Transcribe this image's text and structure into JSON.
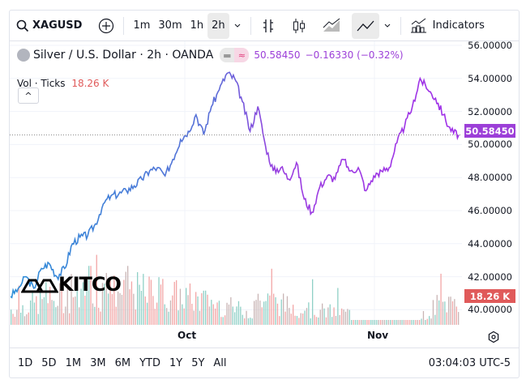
{
  "toolbar": {
    "symbol": "XAGUSD",
    "intervals": [
      "1m",
      "30m",
      "1h",
      "2h"
    ],
    "selected_interval": "2h",
    "indicators_label": "Indicators"
  },
  "legend": {
    "title": "Silver / U.S. Dollar · 2h · OANDA",
    "price": "50.58450",
    "change": "−0.16330 (−0.32%)",
    "price_color": "#9c3fd8"
  },
  "volume": {
    "label": "Vol · Ticks",
    "value": "18.26 K",
    "color": "#e05a5a"
  },
  "price_axis": [
    "56.00000",
    "54.00000",
    "52.00000",
    "50.00000",
    "48.00000",
    "46.00000",
    "44.00000",
    "42.00000",
    "40.00000"
  ],
  "last_price_label": "50.58450",
  "last_volume_label": "18.26 K",
  "time_axis": [
    "Oct",
    "Nov"
  ],
  "ranges": [
    "1D",
    "5D",
    "1M",
    "3M",
    "6M",
    "YTD",
    "1Y",
    "5Y",
    "All"
  ],
  "clock": "03:04:03 UTC-5",
  "logo_text": "KITCO",
  "chart_data": {
    "type": "line",
    "ylim": [
      40,
      56
    ],
    "series": [
      {
        "name": "XAGUSD",
        "values": [
          40.8,
          41.3,
          42.0,
          41.3,
          42.5,
          42.8,
          42.0,
          42.5,
          44.0,
          44.4,
          44.5,
          45.2,
          46.4,
          46.9,
          47.0,
          47.2,
          47.5,
          47.9,
          48.4,
          48.6,
          48.1,
          49.1,
          50.3,
          50.8,
          51.8,
          50.6,
          52.3,
          53.3,
          54.3,
          54.0,
          52.6,
          50.8,
          52.3,
          49.9,
          48.4,
          48.6,
          47.9,
          48.9,
          46.7,
          45.9,
          47.4,
          48.1,
          47.9,
          49.1,
          48.4,
          48.6,
          47.2,
          48.1,
          48.4,
          48.6,
          50.1,
          51.1,
          52.3,
          54.0,
          53.3,
          52.8,
          51.8,
          50.8,
          50.58
        ]
      }
    ]
  }
}
